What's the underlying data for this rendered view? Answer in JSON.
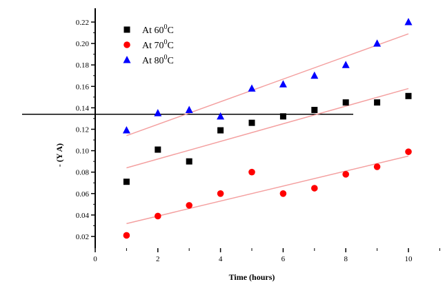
{
  "chart_data": {
    "type": "scatter",
    "xlabel": "Time (hours)",
    "ylabel": "- (Y A)",
    "xlim": [
      0,
      10.6
    ],
    "ylim": [
      0.01,
      0.23
    ],
    "x_ticks": [
      0,
      2,
      4,
      6,
      8,
      10
    ],
    "y_ticks": [
      0.02,
      0.04,
      0.06,
      0.08,
      0.1,
      0.12,
      0.14,
      0.16,
      0.18,
      0.2,
      0.22
    ],
    "y_tick_labels": [
      "0.02",
      "0.04",
      "0.06",
      "0.08",
      "0.10",
      "0.12",
      "0.14",
      "0.16",
      "0.18",
      "0.20",
      "0.22"
    ],
    "legend_position": "top-left",
    "reference_line_y": 0.134,
    "series": [
      {
        "name": "At 60",
        "name_sup": "0",
        "name_suffix": "C",
        "marker": "square",
        "color": "#000000",
        "x": [
          1,
          2,
          3,
          4,
          5,
          6,
          7,
          8,
          9,
          10
        ],
        "y": [
          0.071,
          0.101,
          0.09,
          0.119,
          0.126,
          0.132,
          0.138,
          0.145,
          0.145,
          0.151
        ],
        "fit": [
          0.084,
          0.158
        ]
      },
      {
        "name": "At 70",
        "name_sup": "0",
        "name_suffix": "C",
        "marker": "circle",
        "color": "#ff0000",
        "x": [
          1,
          2,
          3,
          4,
          5,
          6,
          7,
          8,
          9,
          10
        ],
        "y": [
          0.021,
          0.039,
          0.049,
          0.06,
          0.08,
          0.06,
          0.065,
          0.078,
          0.085,
          0.099
        ],
        "fit": [
          0.032,
          0.095
        ]
      },
      {
        "name": "At 80",
        "name_sup": "0",
        "name_suffix": "C",
        "marker": "triangle",
        "color": "#0000ff",
        "x": [
          1,
          2,
          3,
          4,
          5,
          6,
          7,
          8,
          9,
          10
        ],
        "y": [
          0.119,
          0.135,
          0.138,
          0.132,
          0.158,
          0.162,
          0.17,
          0.18,
          0.2,
          0.22
        ],
        "fit": [
          0.114,
          0.209
        ]
      }
    ],
    "fit_color": "#f4a0a0"
  }
}
